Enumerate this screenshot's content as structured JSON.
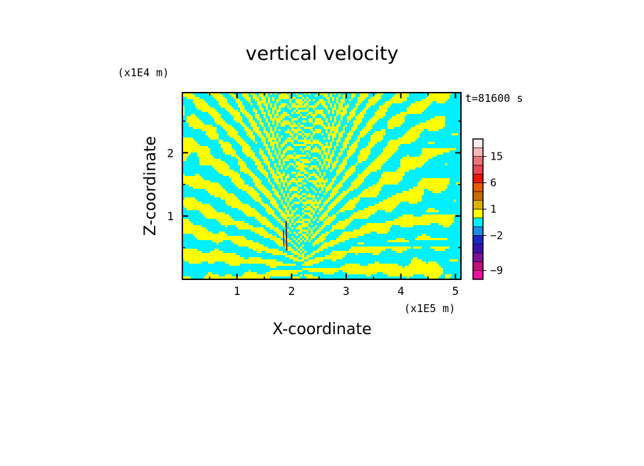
{
  "chart_data": {
    "type": "heatmap",
    "title": "vertical velocity",
    "xlabel": "X-coordinate",
    "ylabel": "Z-coordinate",
    "x_unit": "(x1E5 m)",
    "y_unit": "(x1E4 m)",
    "time_label": "t=81600 s",
    "xlim": [
      0.0,
      5.1
    ],
    "ylim": [
      0.0,
      2.95
    ],
    "x_ticks": [
      1,
      2,
      3,
      4,
      5
    ],
    "y_ticks": [
      1,
      2
    ],
    "colorbar": {
      "levels": [
        -12,
        -9,
        -6,
        -4,
        -3,
        -2,
        -1,
        0,
        1,
        2,
        3,
        6,
        9,
        12,
        15,
        18,
        21
      ],
      "labels": [
        {
          "value": 15,
          "text": "15"
        },
        {
          "value": 6,
          "text": "6"
        },
        {
          "value": 1,
          "text": "1"
        },
        {
          "value": -2,
          "text": "−2"
        },
        {
          "value": -9,
          "text": "−9"
        }
      ],
      "colors": [
        "#e8129c",
        "#c2107f",
        "#7a1495",
        "#3a12a8",
        "#1a28c8",
        "#1f8de0",
        "#00f0ff",
        "#ffff00",
        "#e0b100",
        "#c86a00",
        "#e85a00",
        "#e81800",
        "#e84858",
        "#e87878",
        "#f5b8b8",
        "#ffeaea"
      ]
    },
    "field_description": "alternating positive (yellow) and negative (cyan) vertical velocity bands; V-shaped wave pattern centred near x=2.2",
    "dominant_colors": {
      "positive": "#ffff00",
      "negative": "#00f0ff"
    }
  }
}
